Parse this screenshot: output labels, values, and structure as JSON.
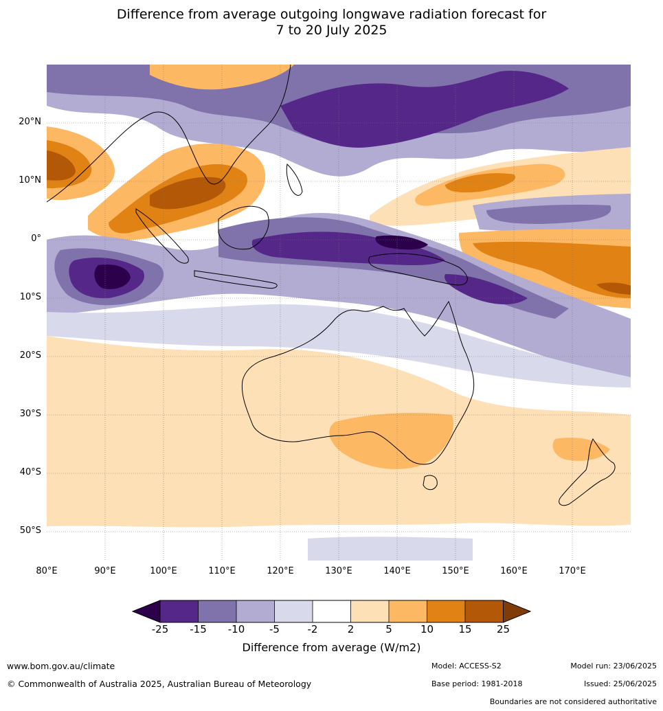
{
  "title": {
    "line1": "Difference from average outgoing longwave radiation forecast for",
    "line2": "7 to 20 July 2025"
  },
  "map": {
    "lat_ticks": [
      "20°N",
      "10°N",
      "0°",
      "10°S",
      "20°S",
      "30°S",
      "40°S",
      "50°S"
    ],
    "lon_ticks": [
      "80°E",
      "90°E",
      "100°E",
      "110°E",
      "120°E",
      "130°E",
      "140°E",
      "150°E",
      "160°E",
      "170°E"
    ],
    "lon_range": [
      80,
      180
    ],
    "lat_range": [
      -55,
      30
    ],
    "gridlines": true,
    "colors": {
      "lt25": "#2d004b",
      "m25_15": "#542788",
      "m15_10": "#8073ac",
      "m10_5": "#b2abd2",
      "m5_2": "#d8daeb",
      "m2_2": "#ffffff",
      "p2_5": "#fee0b6",
      "p5_10": "#fdb863",
      "p10_15": "#e08214",
      "p15_25": "#b35806",
      "gt25": "#7f3b08"
    }
  },
  "colorbar": {
    "ticks": [
      "-25",
      "-15",
      "-10",
      "-5",
      "-2",
      "2",
      "5",
      "10",
      "15",
      "25"
    ],
    "label": "Difference from average (W/m2)"
  },
  "footer": {
    "url": "www.bom.gov.au/climate",
    "copyright": "© Commonwealth of Australia 2025, Australian Bureau of Meteorology",
    "model": "Model: ACCESS-S2",
    "base_period": "Base period: 1981-2018",
    "model_run": "Model run: 23/06/2025",
    "issued": "Issued: 25/06/2025",
    "disclaimer": "Boundaries are not considered authoritative"
  }
}
